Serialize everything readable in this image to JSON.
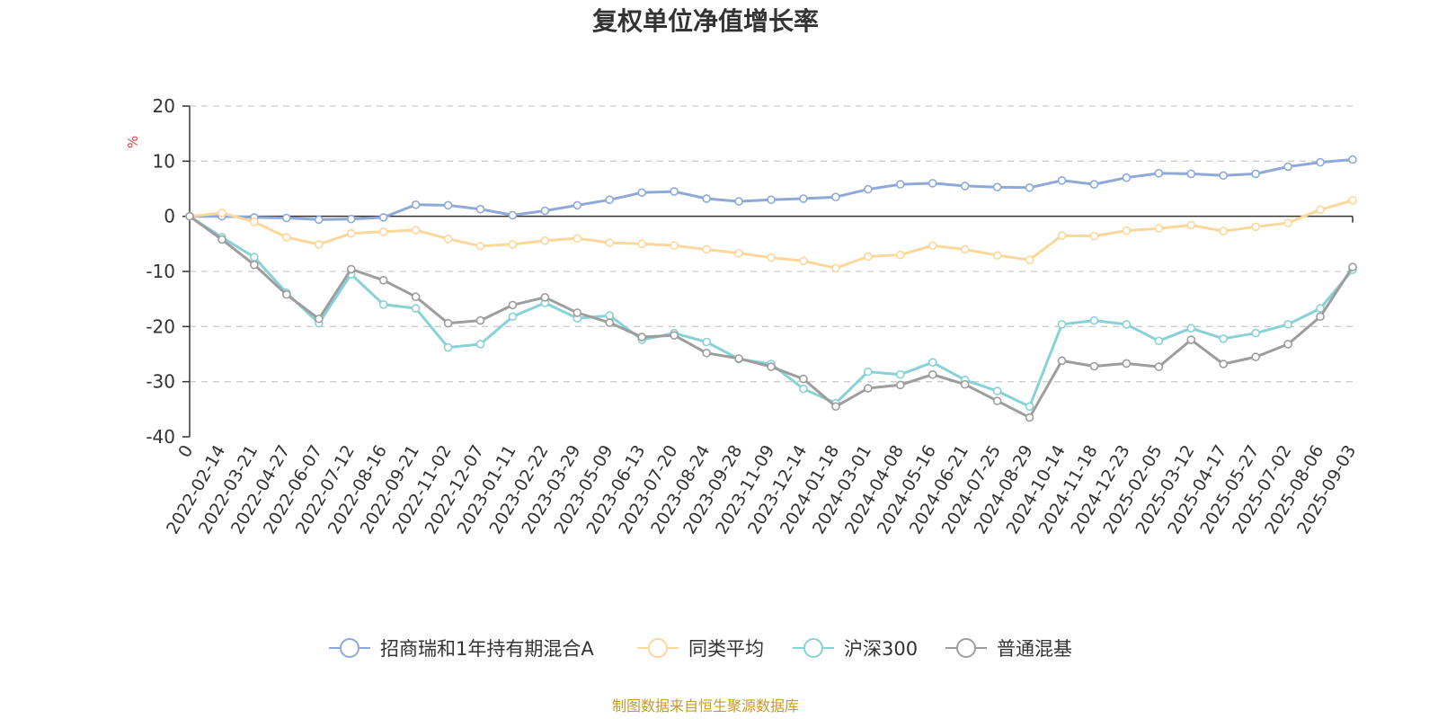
{
  "chart_data": {
    "type": "line",
    "title": "复权单位净值增长率",
    "unit_label": "%",
    "source_text": "制图数据来自恒生聚源数据库",
    "ylim": [
      -40,
      20
    ],
    "y_ticks": [
      "20",
      "10",
      "0",
      "-10",
      "-20",
      "-30",
      "-40"
    ],
    "x_first_label": "0",
    "x": [
      "2022-02-14",
      "2022-03-21",
      "2022-04-27",
      "2022-06-07",
      "2022-07-12",
      "2022-08-16",
      "2022-09-21",
      "2022-11-02",
      "2022-12-07",
      "2023-01-11",
      "2023-02-22",
      "2023-03-29",
      "2023-05-09",
      "2023-06-13",
      "2023-07-20",
      "2023-08-24",
      "2023-09-28",
      "2023-11-09",
      "2023-12-14",
      "2024-01-18",
      "2024-03-01",
      "2024-04-08",
      "2024-05-16",
      "2024-06-21",
      "2024-07-25",
      "2024-08-29",
      "2024-10-14",
      "2024-11-18",
      "2024-12-23",
      "2025-02-05",
      "2025-03-12",
      "2025-04-17",
      "2025-05-27",
      "2025-07-02",
      "2025-08-06",
      "2025-09-03"
    ],
    "grid": true,
    "legend_position": "bottom",
    "series": [
      {
        "name": "招商瑞和1年持有期混合A",
        "color": "#8ea9d8",
        "values": [
          0,
          -0.2,
          -0.3,
          -0.6,
          -0.5,
          -0.2,
          2.1,
          2.0,
          1.3,
          0.2,
          1.0,
          2.0,
          3.0,
          4.3,
          4.5,
          3.2,
          2.7,
          3.0,
          3.2,
          3.5,
          4.9,
          5.8,
          6.0,
          5.5,
          5.3,
          5.2,
          6.5,
          5.8,
          7.0,
          7.8,
          7.7,
          7.4,
          7.7,
          9.0,
          9.8,
          10.3
        ]
      },
      {
        "name": "同类平均",
        "color": "#fbd79a",
        "values": [
          0.6,
          -1.0,
          -3.8,
          -5.1,
          -3.1,
          -2.8,
          -2.5,
          -4.1,
          -5.4,
          -5.1,
          -4.4,
          -4.0,
          -4.8,
          -5.0,
          -5.3,
          -6.0,
          -6.7,
          -7.5,
          -8.1,
          -9.4,
          -7.3,
          -7.0,
          -5.3,
          -6.0,
          -7.1,
          -7.9,
          -3.5,
          -3.6,
          -2.6,
          -2.2,
          -1.6,
          -2.7,
          -1.9,
          -1.2,
          1.2,
          2.9
        ]
      },
      {
        "name": "沪深300",
        "color": "#86d2d6",
        "values": [
          -3.8,
          -7.4,
          -13.9,
          -19.4,
          -10.5,
          -16.0,
          -16.7,
          -23.8,
          -23.2,
          -18.2,
          -15.7,
          -18.5,
          -18.0,
          -22.4,
          -21.2,
          -22.8,
          -25.9,
          -26.8,
          -31.3,
          -33.9,
          -28.2,
          -28.7,
          -26.5,
          -29.7,
          -31.7,
          -34.5,
          -19.6,
          -18.9,
          -19.6,
          -22.6,
          -20.3,
          -22.2,
          -21.2,
          -19.6,
          -16.7,
          -9.7
        ]
      },
      {
        "name": "普通混基",
        "color": "#9d9d9d",
        "values": [
          -4.2,
          -8.8,
          -14.2,
          -18.6,
          -9.6,
          -11.6,
          -14.6,
          -19.4,
          -18.9,
          -16.1,
          -14.7,
          -17.5,
          -19.3,
          -21.9,
          -21.6,
          -24.8,
          -25.8,
          -27.3,
          -29.5,
          -34.5,
          -31.2,
          -30.6,
          -28.7,
          -30.5,
          -33.5,
          -36.5,
          -26.2,
          -27.2,
          -26.7,
          -27.3,
          -22.4,
          -26.8,
          -25.5,
          -23.2,
          -18.2,
          -9.2
        ]
      }
    ]
  }
}
